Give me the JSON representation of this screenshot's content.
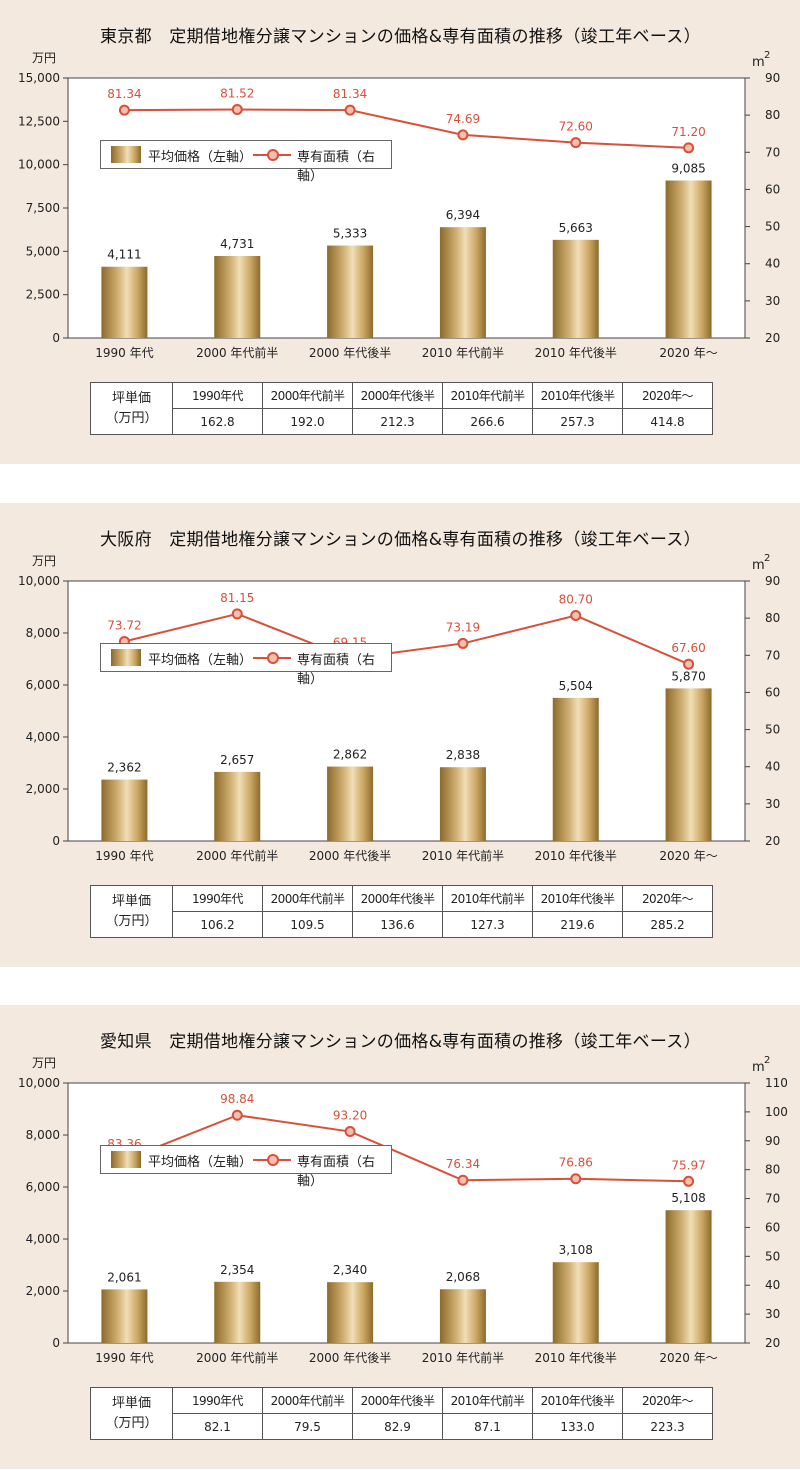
{
  "legend": {
    "price_label": "平均価格（左軸）",
    "area_label": "専有面積（右軸）"
  },
  "table_header": {
    "line1": "坪単価",
    "line2": "（万円）"
  },
  "table_periods": [
    "1990年代",
    "2000年代前半",
    "2000年代後半",
    "2010年代前半",
    "2010年代後半",
    "2020年〜"
  ],
  "colors": {
    "bar": "#c9a45f",
    "line": "#d8503a",
    "label": "#d8503a",
    "panel_bg": "#f4e9df"
  },
  "chart_data": [
    {
      "type": "bar",
      "title": "東京都　定期借地権分譲マンションの価格&専有面積の推移（竣工年ベース）",
      "categories": [
        "1990 年代",
        "2000 年代前半",
        "2000 年代後半",
        "2010 年代前半",
        "2010 年代後半",
        "2020 年〜"
      ],
      "series": [
        {
          "name": "平均価格（左軸）",
          "type": "bar",
          "axis": "left",
          "values": [
            4111,
            4731,
            5333,
            6394,
            5663,
            9085
          ],
          "labels": [
            "4,111",
            "4,731",
            "5,333",
            "6,394",
            "5,663",
            "9,085"
          ]
        },
        {
          "name": "専有面積（右軸）",
          "type": "line",
          "axis": "right",
          "values": [
            81.34,
            81.52,
            81.34,
            74.69,
            72.6,
            71.2
          ],
          "labels": [
            "81.34",
            "81.52",
            "81.34",
            "74.69",
            "72.60",
            "71.20"
          ]
        }
      ],
      "left_axis": {
        "unit": "万円",
        "ylim": [
          0,
          15000
        ],
        "ticks": [
          "0",
          "2,500",
          "5,000",
          "7,500",
          "10,000",
          "12,500",
          "15,000"
        ]
      },
      "right_axis": {
        "unit": "m",
        "unit_sup": "2",
        "ylim": [
          20,
          90
        ],
        "ticks": [
          "20",
          "30",
          "40",
          "50",
          "60",
          "70",
          "80",
          "90"
        ]
      },
      "tsubo_price": [
        "162.8",
        "192.0",
        "212.3",
        "266.6",
        "257.3",
        "414.8"
      ]
    },
    {
      "type": "bar",
      "title": "大阪府　定期借地権分譲マンションの価格&専有面積の推移（竣工年ベース）",
      "categories": [
        "1990 年代",
        "2000 年代前半",
        "2000 年代後半",
        "2010 年代前半",
        "2010 年代後半",
        "2020 年〜"
      ],
      "series": [
        {
          "name": "平均価格（左軸）",
          "type": "bar",
          "axis": "left",
          "values": [
            2362,
            2657,
            2862,
            2838,
            5504,
            5870
          ],
          "labels": [
            "2,362",
            "2,657",
            "2,862",
            "2,838",
            "5,504",
            "5,870"
          ]
        },
        {
          "name": "専有面積（右軸）",
          "type": "line",
          "axis": "right",
          "values": [
            73.72,
            81.15,
            69.15,
            73.19,
            80.7,
            67.6
          ],
          "labels": [
            "73.72",
            "81.15",
            "69.15",
            "73.19",
            "80.70",
            "67.60"
          ]
        }
      ],
      "left_axis": {
        "unit": "万円",
        "ylim": [
          0,
          10000
        ],
        "ticks": [
          "0",
          "2,000",
          "4,000",
          "6,000",
          "8,000",
          "10,000"
        ]
      },
      "right_axis": {
        "unit": "m",
        "unit_sup": "2",
        "ylim": [
          20,
          90
        ],
        "ticks": [
          "20",
          "30",
          "40",
          "50",
          "60",
          "70",
          "80",
          "90"
        ]
      },
      "tsubo_price": [
        "106.2",
        "109.5",
        "136.6",
        "127.3",
        "219.6",
        "285.2"
      ]
    },
    {
      "type": "bar",
      "title": "愛知県　定期借地権分譲マンションの価格&専有面積の推移（竣工年ベース）",
      "categories": [
        "1990 年代",
        "2000 年代前半",
        "2000 年代後半",
        "2010 年代前半",
        "2010 年代後半",
        "2020 年〜"
      ],
      "series": [
        {
          "name": "平均価格（左軸）",
          "type": "bar",
          "axis": "left",
          "values": [
            2061,
            2354,
            2340,
            2068,
            3108,
            5108
          ],
          "labels": [
            "2,061",
            "2,354",
            "2,340",
            "2,068",
            "3,108",
            "5,108"
          ]
        },
        {
          "name": "専有面積（右軸）",
          "type": "line",
          "axis": "right",
          "values": [
            83.36,
            98.84,
            93.2,
            76.34,
            76.86,
            75.97
          ],
          "labels": [
            "83.36",
            "98.84",
            "93.20",
            "76.34",
            "76.86",
            "75.97"
          ]
        }
      ],
      "left_axis": {
        "unit": "万円",
        "ylim": [
          0,
          10000
        ],
        "ticks": [
          "0",
          "2,000",
          "4,000",
          "6,000",
          "8,000",
          "10,000"
        ]
      },
      "right_axis": {
        "unit": "m",
        "unit_sup": "2",
        "ylim": [
          20,
          110
        ],
        "ticks": [
          "20",
          "30",
          "40",
          "50",
          "60",
          "70",
          "80",
          "90",
          "100",
          "110"
        ]
      },
      "tsubo_price": [
        "82.1",
        "79.5",
        "82.9",
        "87.1",
        "133.0",
        "223.3"
      ]
    }
  ]
}
